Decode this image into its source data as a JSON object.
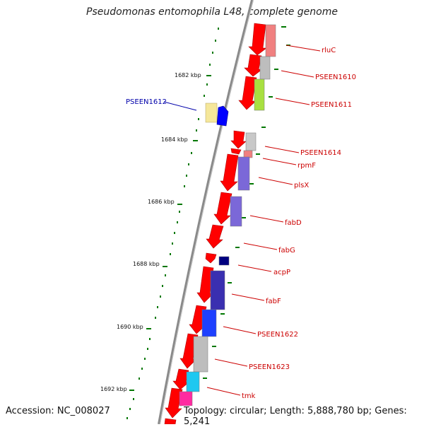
{
  "title": "Pseudomonas entomophila L48, complete genome",
  "footer": {
    "accession": "Accession: NC_008027",
    "topology": "Topology: circular; Length: 5,888,780 bp; Genes: 5,241"
  },
  "colors": {
    "backbone": "#8a8a8a",
    "forward_gene": "#ff0000",
    "label_forward": "#cc0000",
    "label_reverse": "#0000aa",
    "tick": "#006600"
  },
  "kbp_marks": [
    "1682 kbp",
    "1684 kbp",
    "1686 kbp",
    "1688 kbp",
    "1690 kbp",
    "1692 kbp"
  ],
  "gene_labels": [
    {
      "name": "rluC"
    },
    {
      "name": "PSEEN1610"
    },
    {
      "name": "PSEEN1611"
    },
    {
      "name": "PSEEN1612"
    },
    {
      "name": "PSEEN1614"
    },
    {
      "name": "rpmF"
    },
    {
      "name": "plsX"
    },
    {
      "name": "fabD"
    },
    {
      "name": "fabG"
    },
    {
      "name": "acpP"
    },
    {
      "name": "fabF"
    },
    {
      "name": "PSEEN1622"
    },
    {
      "name": "PSEEN1623"
    },
    {
      "name": "tmk"
    }
  ]
}
